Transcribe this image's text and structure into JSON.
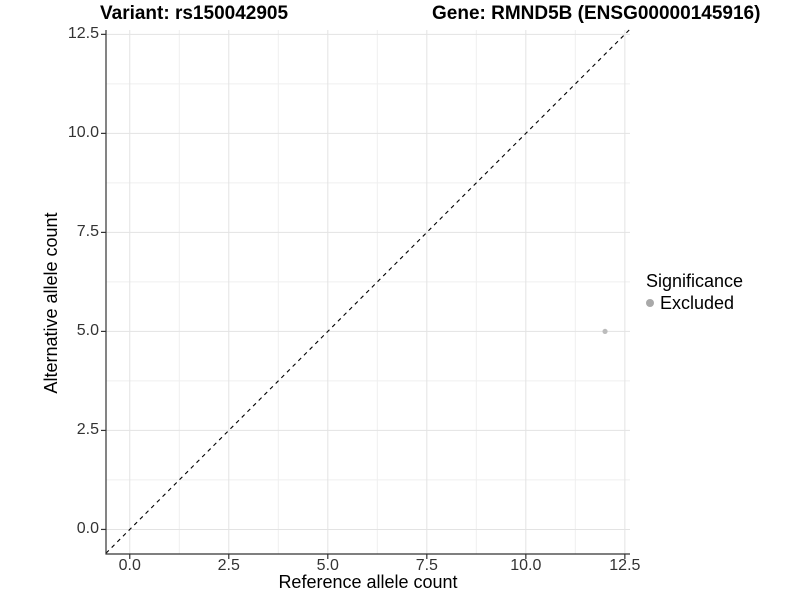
{
  "titles": {
    "left": "Variant: rs150042905",
    "right": "Gene: RMND5B (ENSG00000145916)"
  },
  "legend": {
    "title": "Significance",
    "items": [
      {
        "label": "Excluded",
        "color": "#a9a9a9"
      }
    ]
  },
  "colors": {
    "point": "#bcbcbc",
    "grid_major": "#e3e3e3",
    "grid_minor": "#efefef",
    "axis_line": "#333333",
    "tick_mark": "#333333",
    "reference_line": "#000000"
  },
  "chart_data": {
    "type": "scatter",
    "title": "Variant: rs150042905 | Gene: RMND5B (ENSG00000145916)",
    "xlabel": "Reference allele count",
    "ylabel": "Alternative allele count",
    "xlim": [
      -0.6,
      12.63
    ],
    "ylim": [
      -0.62,
      12.61
    ],
    "x_ticks": [
      0.0,
      2.5,
      5.0,
      7.5,
      10.0,
      12.5
    ],
    "y_ticks": [
      0.0,
      2.5,
      5.0,
      7.5,
      10.0,
      12.5
    ],
    "x_tick_labels": [
      "0.0",
      "2.5",
      "5.0",
      "7.5",
      "10.0",
      "12.5"
    ],
    "y_tick_labels": [
      "0.0",
      "2.5",
      "5.0",
      "7.5",
      "10.0",
      "12.5"
    ],
    "grid": "major-and-minor",
    "legend_position": "right",
    "legend_title": "Significance",
    "reference_line": {
      "type": "identity",
      "slope": 1,
      "intercept": 0,
      "style": "dashed",
      "color": "#000000"
    },
    "series": [
      {
        "name": "Excluded",
        "color": "#bcbcbc",
        "points": [
          {
            "x": 12,
            "y": 5
          }
        ]
      }
    ]
  }
}
